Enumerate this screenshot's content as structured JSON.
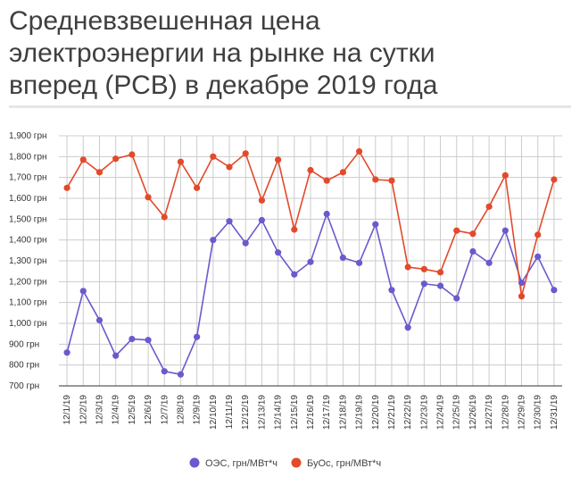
{
  "chart_data": {
    "type": "line",
    "title": "Средневзвешенная цена электроэнергии на рынке на сутки вперед (РСВ) в декабре 2019 года",
    "xlabel": "",
    "ylabel": "",
    "categories": [
      "12/1/19",
      "12/2/19",
      "12/3/19",
      "12/4/19",
      "12/5/19",
      "12/6/19",
      "12/7/19",
      "12/8/19",
      "12/9/19",
      "12/10/19",
      "12/11/19",
      "12/12/19",
      "12/13/19",
      "12/14/19",
      "12/15/19",
      "12/16/19",
      "12/17/19",
      "12/18/19",
      "12/19/19",
      "12/20/19",
      "12/21/19",
      "12/22/19",
      "12/23/19",
      "12/24/19",
      "12/25/19",
      "12/26/19",
      "12/27/19",
      "12/28/19",
      "12/29/19",
      "12/30/19",
      "12/31/19"
    ],
    "ylim": [
      700,
      1900
    ],
    "yticks": [
      700,
      800,
      900,
      1000,
      1100,
      1200,
      1300,
      1400,
      1500,
      1600,
      1700,
      1800,
      1900
    ],
    "ytick_labels": [
      "700 грн",
      "800 грн",
      "900 грн",
      "1,000 грн",
      "1,100 грн",
      "1,200 грн",
      "1,300 грн",
      "1,400 грн",
      "1,500 грн",
      "1,600 грн",
      "1,700 грн",
      "1,800 грн",
      "1,900 грн"
    ],
    "grid": true,
    "legend_position": "bottom",
    "series": [
      {
        "name": "ОЭС, грн/МВт*ч",
        "color": "#6a5acd",
        "values": [
          860,
          1155,
          1015,
          845,
          925,
          920,
          770,
          755,
          935,
          1400,
          1490,
          1385,
          1495,
          1340,
          1235,
          1295,
          1525,
          1315,
          1290,
          1475,
          1160,
          980,
          1190,
          1180,
          1120,
          1345,
          1290,
          1445,
          1195,
          1320,
          1160
        ]
      },
      {
        "name": "БуОс, грн/МВт*ч",
        "color": "#e24a2b",
        "values": [
          1650,
          1785,
          1725,
          1790,
          1810,
          1605,
          1510,
          1775,
          1650,
          1800,
          1750,
          1815,
          1590,
          1785,
          1450,
          1735,
          1685,
          1725,
          1825,
          1690,
          1685,
          1270,
          1260,
          1245,
          1445,
          1430,
          1560,
          1710,
          1130,
          1425,
          1690
        ]
      }
    ]
  }
}
